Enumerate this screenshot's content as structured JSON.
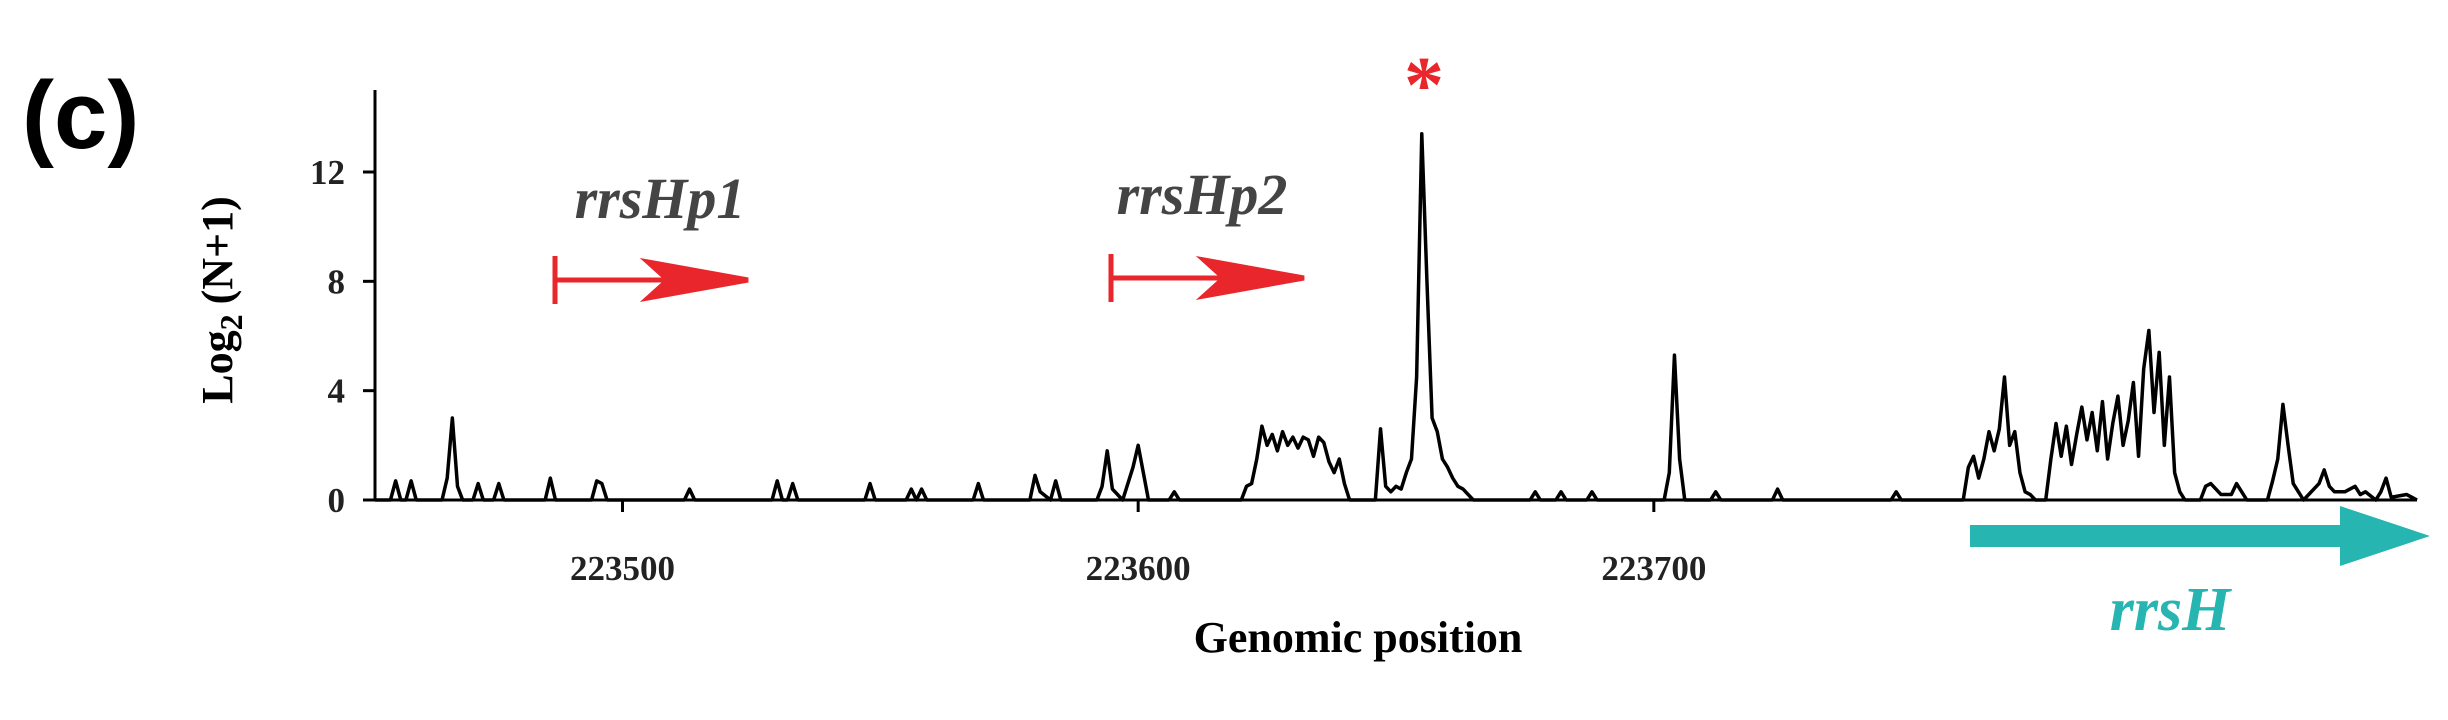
{
  "chart_data": {
    "type": "line",
    "panel_label": "(c)",
    "y_label": "Log",
    "y_label_sub": "2",
    "y_label_tail": "(N+1)",
    "x_label": "Genomic position",
    "annotations": {
      "promoter1": "rrsHp1",
      "promoter2": "rrsHp2",
      "peak_marker": "*",
      "gene": "rrsH"
    },
    "xlim": [
      223452,
      223848
    ],
    "xticks": [
      223500,
      223600,
      223700
    ],
    "ylim": [
      0,
      15
    ],
    "yticks": [
      0,
      4,
      8,
      12
    ],
    "series": [
      {
        "color": "#000000",
        "x": [
          223452,
          223455,
          223456,
          223457,
          223458,
          223459,
          223460,
          223465,
          223466,
          223467,
          223468,
          223469,
          223471,
          223472,
          223473,
          223475,
          223476,
          223477,
          223485,
          223486,
          223487,
          223494,
          223495,
          223496,
          223497,
          223512,
          223513,
          223514,
          223529,
          223530,
          223531,
          223532,
          223533,
          223534,
          223547,
          223548,
          223549,
          223555,
          223556,
          223557,
          223558,
          223559,
          223568,
          223569,
          223570,
          223579,
          223580,
          223581,
          223583,
          223584,
          223585,
          223592,
          223593,
          223594,
          223595,
          223597,
          223599,
          223600,
          223601,
          223602,
          223606,
          223607,
          223608,
          223620,
          223621,
          223622,
          223623,
          223624,
          223625,
          223626,
          223627,
          223628,
          223629,
          223630,
          223631,
          223632,
          223633,
          223634,
          223635,
          223636,
          223637,
          223638,
          223639,
          223640,
          223641,
          223646,
          223647,
          223648,
          223649,
          223650,
          223651,
          223652,
          223653,
          223654,
          223655,
          223656,
          223657,
          223658,
          223659,
          223660,
          223661,
          223662,
          223663,
          223664,
          223665,
          223676,
          223677,
          223678,
          223681,
          223682,
          223683,
          223687,
          223688,
          223689,
          223702,
          223703,
          223704,
          223705,
          223706,
          223711,
          223712,
          223713,
          223723,
          223724,
          223725,
          223746,
          223747,
          223748,
          223760,
          223761,
          223762,
          223763,
          223764,
          223765,
          223766,
          223767,
          223768,
          223769,
          223770,
          223771,
          223772,
          223773,
          223774,
          223776,
          223777,
          223778,
          223779,
          223780,
          223781,
          223782,
          223783,
          223784,
          223785,
          223786,
          223787,
          223788,
          223789,
          223790,
          223791,
          223792,
          223793,
          223794,
          223795,
          223796,
          223797,
          223798,
          223799,
          223800,
          223801,
          223802,
          223803,
          223806,
          223807,
          223808,
          223809,
          223810,
          223812,
          223813,
          223814,
          223815,
          223819,
          223820,
          223821,
          223822,
          223823,
          223824,
          223825,
          223826,
          223829,
          223830,
          223831,
          223832,
          223834,
          223836,
          223837,
          223838,
          223840,
          223841,
          223842,
          223843,
          223846,
          223848
        ],
        "values": [
          0,
          0,
          0.7,
          0,
          0,
          0.7,
          0,
          0,
          0.8,
          3.0,
          0.5,
          0,
          0,
          0.6,
          0,
          0,
          0.6,
          0,
          0,
          0.8,
          0,
          0,
          0.7,
          0.6,
          0,
          0,
          0.4,
          0,
          0,
          0.7,
          0,
          0,
          0.6,
          0,
          0,
          0.6,
          0,
          0,
          0.4,
          0,
          0.4,
          0,
          0,
          0.6,
          0,
          0,
          0.9,
          0.3,
          0,
          0.7,
          0,
          0,
          0.5,
          1.8,
          0.4,
          0,
          1.2,
          2.0,
          1.0,
          0,
          0,
          0.3,
          0,
          0,
          0.5,
          0.6,
          1.5,
          2.7,
          2.0,
          2.4,
          1.8,
          2.5,
          2.0,
          2.3,
          1.9,
          2.3,
          2.2,
          1.6,
          2.3,
          2.1,
          1.4,
          1.0,
          1.5,
          0.6,
          0,
          0,
          2.6,
          0.5,
          0.3,
          0.5,
          0.4,
          1.0,
          1.5,
          4.5,
          13.4,
          8.0,
          3.0,
          2.5,
          1.5,
          1.2,
          0.8,
          0.5,
          0.4,
          0.2,
          0,
          0,
          0.3,
          0,
          0,
          0.3,
          0,
          0,
          0.3,
          0,
          0,
          1.0,
          5.3,
          1.5,
          0,
          0,
          0.3,
          0,
          0,
          0.4,
          0,
          0,
          0.3,
          0,
          0,
          1.2,
          1.6,
          0.8,
          1.5,
          2.5,
          1.8,
          2.6,
          4.5,
          2.0,
          2.5,
          1.0,
          0.3,
          0.2,
          0,
          0,
          1.5,
          2.8,
          1.6,
          2.7,
          1.3,
          2.4,
          3.4,
          2.2,
          3.2,
          1.8,
          3.6,
          1.5,
          2.8,
          3.8,
          2.0,
          2.9,
          4.3,
          1.6,
          4.8,
          6.2,
          3.2,
          5.4,
          2.0,
          4.5,
          1.0,
          0.3,
          0,
          0,
          0.5,
          0.6,
          0.4,
          0.2,
          0.2,
          0.6,
          0.3,
          0,
          0,
          0.7,
          1.5,
          3.5,
          2.0,
          0.6,
          0.3,
          0,
          0.6,
          1.1,
          0.5,
          0.3,
          0.3,
          0.5,
          0.2,
          0.3,
          0,
          0.3,
          0.8,
          0.1,
          0.2,
          0
        ]
      }
    ]
  }
}
